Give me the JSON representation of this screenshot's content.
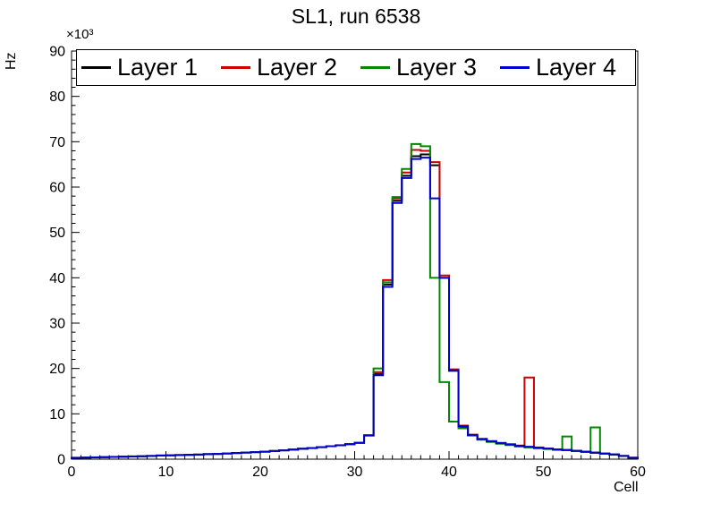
{
  "title": "SL1, run 6538",
  "chart_data": {
    "type": "line",
    "style": "step-histogram",
    "title": "SL1, run 6538",
    "xlabel": "Cell",
    "ylabel": "Hz",
    "y_multiplier_label": "×10³",
    "xlim": [
      0,
      60
    ],
    "ylim": [
      0,
      90000
    ],
    "x_ticks": [
      0,
      10,
      20,
      30,
      40,
      50,
      60
    ],
    "y_ticks": [
      0,
      10,
      20,
      30,
      40,
      50,
      60,
      70,
      80,
      90
    ],
    "y_tick_scale": 1000,
    "x_minor_step": 1,
    "y_minor_step_khz": 2,
    "bin_width": 1,
    "grid": false,
    "legend_position": "top-inside",
    "series": [
      {
        "name": "Layer 1",
        "color": "#000000",
        "values": [
          300,
          350,
          400,
          450,
          500,
          550,
          600,
          650,
          700,
          800,
          850,
          900,
          950,
          1000,
          1100,
          1150,
          1250,
          1350,
          1450,
          1550,
          1650,
          1800,
          1950,
          2100,
          2300,
          2450,
          2650,
          2850,
          3050,
          3300,
          3600,
          5200,
          18800,
          38500,
          57000,
          62500,
          66800,
          67200,
          64800,
          40000,
          19500,
          7200,
          5300,
          4400,
          3900,
          3500,
          3200,
          2900,
          2700,
          2500,
          2300,
          2100,
          2000,
          1800,
          1600,
          1400,
          1200,
          1000,
          700,
          300
        ]
      },
      {
        "name": "Layer 2",
        "color": "#cc0000",
        "values": [
          320,
          360,
          410,
          460,
          510,
          560,
          610,
          660,
          720,
          810,
          860,
          910,
          960,
          1020,
          1110,
          1170,
          1270,
          1370,
          1470,
          1570,
          1670,
          1820,
          1970,
          2130,
          2320,
          2470,
          2670,
          2870,
          3080,
          3320,
          3650,
          5300,
          19200,
          39500,
          57500,
          63200,
          68200,
          68000,
          65500,
          40500,
          19800,
          7400,
          5400,
          4500,
          4000,
          3600,
          3300,
          3000,
          18000,
          2600,
          2350,
          2150,
          2000,
          1850,
          1650,
          1450,
          1250,
          1050,
          750,
          350
        ]
      },
      {
        "name": "Layer 3",
        "color": "#008800",
        "values": [
          310,
          355,
          405,
          455,
          505,
          555,
          605,
          655,
          710,
          805,
          855,
          905,
          955,
          1010,
          1105,
          1160,
          1260,
          1360,
          1460,
          1560,
          1660,
          1810,
          1960,
          2120,
          2310,
          2460,
          2660,
          2860,
          3060,
          3310,
          3620,
          5250,
          20000,
          39000,
          57800,
          64000,
          69500,
          69000,
          40000,
          17000,
          8300,
          6800,
          5200,
          4300,
          3800,
          3400,
          3100,
          2800,
          2600,
          2400,
          2250,
          2050,
          5000,
          1800,
          1600,
          7000,
          1200,
          1000,
          700,
          300
        ]
      },
      {
        "name": "Layer 4",
        "color": "#0000cc",
        "values": [
          305,
          352,
          402,
          452,
          502,
          552,
          602,
          652,
          705,
          802,
          852,
          902,
          952,
          1005,
          1102,
          1155,
          1255,
          1355,
          1455,
          1555,
          1655,
          1805,
          1955,
          2110,
          2305,
          2455,
          2655,
          2855,
          3055,
          3305,
          3610,
          5220,
          18500,
          38000,
          56500,
          62000,
          66200,
          66500,
          57500,
          40000,
          19600,
          7300,
          5350,
          4450,
          3950,
          3550,
          3250,
          2950,
          2750,
          2550,
          2350,
          2150,
          2050,
          1850,
          1650,
          1450,
          1250,
          1050,
          720,
          320
        ]
      }
    ]
  }
}
